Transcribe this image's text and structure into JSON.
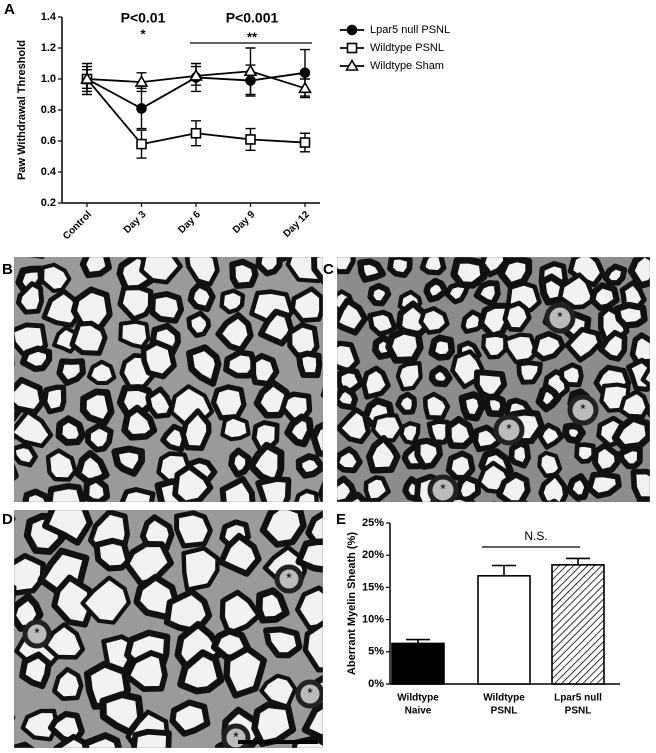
{
  "panel_labels": [
    "A",
    "B",
    "C",
    "D",
    "E"
  ],
  "micrograph_annotations": {
    "C": [
      "*",
      "*",
      "*",
      "*"
    ],
    "D": [
      "*",
      "*",
      "*",
      "*"
    ]
  },
  "chart_data": [
    {
      "type": "line",
      "y_label": "Paw Withdrawal Threshold",
      "categories": [
        "Control",
        "Day 3",
        "Day 6",
        "Day 9",
        "Day 12"
      ],
      "ylim": [
        0.2,
        1.4
      ],
      "yticks": [
        0.2,
        0.4,
        0.6,
        0.8,
        {
          "value": 1.0,
          "label": "1.0"
        },
        1.2,
        1.4
      ],
      "annotations": [
        "P<0.01",
        "*",
        "P<0.001",
        "**"
      ],
      "series": [
        {
          "name": "Lpar5 null PSNL",
          "color": "#000000",
          "marker": "circle",
          "filled": true,
          "values": [
            1.0,
            0.81,
            1.01,
            0.99,
            1.04
          ],
          "errors": [
            0.1,
            0.13,
            0.09,
            0.1,
            0.15
          ]
        },
        {
          "name": "Wildtype PSNL",
          "color": "#000000",
          "marker": "square",
          "filled": false,
          "values": [
            1.0,
            0.58,
            0.65,
            0.61,
            0.59
          ],
          "errors": [
            0.08,
            0.09,
            0.08,
            0.07,
            0.06
          ]
        },
        {
          "name": "Wildtype Sham",
          "color": "#000000",
          "marker": "triangle",
          "filled": false,
          "values": [
            1.0,
            0.98,
            1.02,
            1.05,
            0.94
          ],
          "errors": [
            0.06,
            0.06,
            0.06,
            0.15,
            0.06
          ]
        }
      ]
    },
    {
      "type": "bar",
      "y_label": "Aberrant Myelin Sheath (%)",
      "categories": [
        [
          "Wildtype",
          "Naive"
        ],
        [
          "Wildtype",
          "PSNL"
        ],
        [
          "Lpar5 null",
          "PSNL"
        ]
      ],
      "values": [
        6.3,
        16.8,
        18.5
      ],
      "errors": [
        0.6,
        1.6,
        1.0
      ],
      "colors": [
        "#000000",
        "#ffffff",
        "#ffffff"
      ],
      "hatched": [
        false,
        false,
        true
      ],
      "ylim": [
        0,
        25
      ],
      "yticks": [
        {
          "value": 0,
          "label": "0%"
        },
        {
          "value": 5,
          "label": "5%"
        },
        {
          "value": 10,
          "label": "10%"
        },
        {
          "value": 15,
          "label": "15%"
        },
        {
          "value": 20,
          "label": "20%"
        },
        {
          "value": 25,
          "label": "25%"
        }
      ],
      "annotations": [
        "N.S."
      ]
    }
  ]
}
